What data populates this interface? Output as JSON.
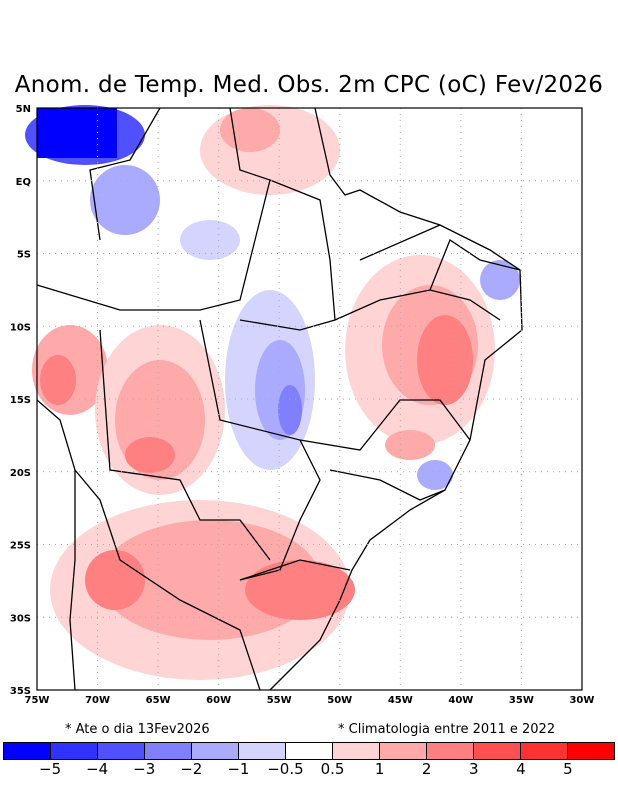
{
  "title": "Anom. de Temp. Med. Obs. 2m CPC (oC) Fev/2026",
  "notes": {
    "left": "* Ate o dia 13Fev2026",
    "right": "* Climatologia entre 2011 e 2022"
  },
  "axes": {
    "lon_labels": [
      "75W",
      "70W",
      "65W",
      "60W",
      "55W",
      "50W",
      "45W",
      "40W",
      "35W",
      "30W"
    ],
    "lat_labels": [
      "5N",
      "EQ",
      "5S",
      "10S",
      "15S",
      "20S",
      "25S",
      "30S",
      "35S"
    ]
  },
  "colorbar": {
    "colors": [
      "#0000ff",
      "#3232ff",
      "#5050ff",
      "#8080ff",
      "#aaaaff",
      "#d4d4ff",
      "#ffffff",
      "#ffd4d4",
      "#ffaaaa",
      "#ff8080",
      "#ff5050",
      "#ff3232",
      "#ff0000"
    ],
    "labels": [
      "−5",
      "−4",
      "−3",
      "−2",
      "−1",
      "−0.5",
      "0.5",
      "1",
      "2",
      "3",
      "4",
      "5"
    ]
  }
}
